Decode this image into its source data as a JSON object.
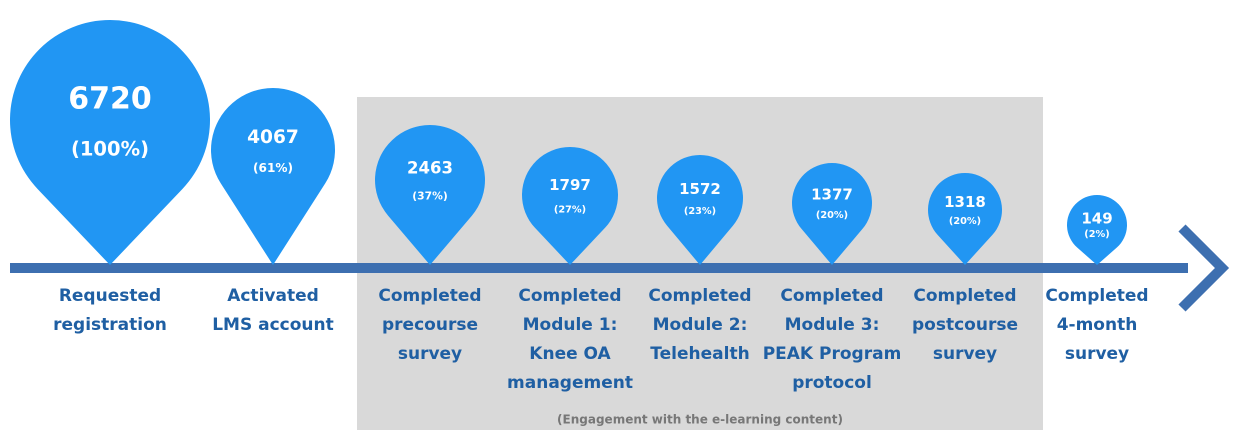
{
  "stages": [
    {
      "value": "6720",
      "percent": "(100%)",
      "label": [
        "Requested",
        "registration"
      ]
    },
    {
      "value": "4067",
      "percent": "(61%)",
      "label": [
        "Activated",
        "LMS account"
      ]
    },
    {
      "value": "2463",
      "percent": "(37%)",
      "label": [
        "Completed",
        "precourse",
        "survey"
      ]
    },
    {
      "value": "1797",
      "percent": "(27%)",
      "label": [
        "Completed",
        "Module 1:",
        "Knee OA",
        "management"
      ]
    },
    {
      "value": "1572",
      "percent": "(23%)",
      "label": [
        "Completed",
        "Module 2:",
        "Telehealth"
      ]
    },
    {
      "value": "1377",
      "percent": "(20%)",
      "label": [
        "Completed",
        "Module 3:",
        "PEAK Program",
        "protocol"
      ]
    },
    {
      "value": "1318",
      "percent": "(20%)",
      "label": [
        "Completed",
        "postcourse",
        "survey"
      ]
    },
    {
      "value": "149",
      "percent": "(2%)",
      "label": [
        "Completed",
        "4-month",
        "survey"
      ]
    }
  ],
  "caption": "(Engagement with the e-learning content)"
}
